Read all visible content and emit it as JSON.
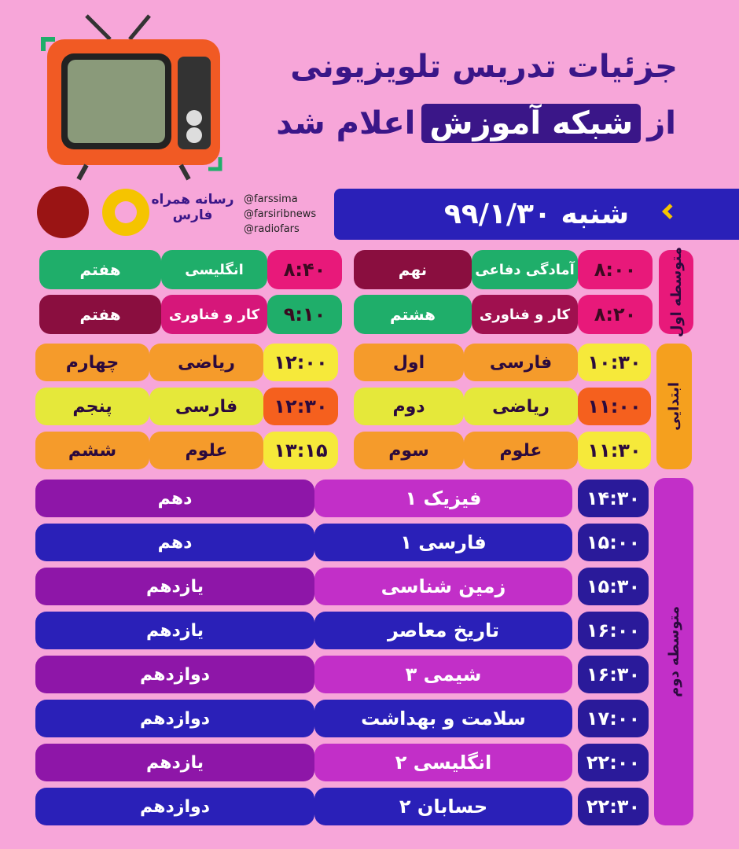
{
  "header": {
    "title_line1": "جزئیات تدریس تلویزیونی",
    "title_from": "از",
    "title_highlight": "شبکه آموزش",
    "title_announced": "اعلام شد"
  },
  "logos": {
    "media_name": "رسانه همراه فارس",
    "handles": [
      "@farssima",
      "@farsiribnews",
      "@radiofars"
    ]
  },
  "date": "شنبه ۹۹/۱/۳۰",
  "sections": [
    {
      "label": "متوسطه اول",
      "rows": [
        {
          "time": "۸:۰۰",
          "subject": "آمادگی دفاعی",
          "grade": "نهم"
        },
        {
          "time": "۸:۲۰",
          "subject": "کار و فناوری",
          "grade": "هشتم"
        },
        {
          "time": "۸:۴۰",
          "subject": "انگلیسی",
          "grade": "هفتم"
        },
        {
          "time": "۹:۱۰",
          "subject": "کار و فناوری",
          "grade": "هفتم"
        }
      ]
    },
    {
      "label": "ابتدایی",
      "rows": [
        {
          "time": "۱۰:۳۰",
          "subject": "فارسی",
          "grade": "اول"
        },
        {
          "time": "۱۱:۰۰",
          "subject": "ریاضی",
          "grade": "دوم"
        },
        {
          "time": "۱۱:۳۰",
          "subject": "علوم",
          "grade": "سوم"
        },
        {
          "time": "۱۲:۰۰",
          "subject": "ریاضی",
          "grade": "چهارم"
        },
        {
          "time": "۱۲:۳۰",
          "subject": "فارسی",
          "grade": "پنجم"
        },
        {
          "time": "۱۳:۱۵",
          "subject": "علوم",
          "grade": "ششم"
        }
      ]
    },
    {
      "label": "متوسطه دوم",
      "rows": [
        {
          "time": "۱۴:۳۰",
          "subject": "فیزیک ۱",
          "grade": "دهم"
        },
        {
          "time": "۱۵:۰۰",
          "subject": "فارسی ۱",
          "grade": "دهم"
        },
        {
          "time": "۱۵:۳۰",
          "subject": "زمین شناسی",
          "grade": "یازدهم"
        },
        {
          "time": "۱۶:۰۰",
          "subject": "تاریخ معاصر",
          "grade": "یازدهم"
        },
        {
          "time": "۱۶:۳۰",
          "subject": "شیمی ۳",
          "grade": "دوازدهم"
        },
        {
          "time": "۱۷:۰۰",
          "subject": "سلامت و بهداشت",
          "grade": "دوازدهم"
        },
        {
          "time": "۲۲:۰۰",
          "subject": "انگلیسی ۲",
          "grade": "یازدهم"
        },
        {
          "time": "۲۲:۳۰",
          "subject": "حسابان ۲",
          "grade": "دوازدهم"
        }
      ]
    }
  ]
}
